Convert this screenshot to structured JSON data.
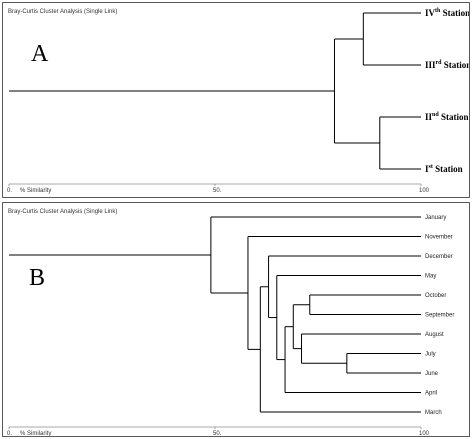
{
  "chart_data": [
    {
      "type": "dendrogram",
      "title": "Bray-Curtis Cluster Analysis (Single Link)",
      "panel_label": "A",
      "xlabel": "% Similarity",
      "xlim": [
        0,
        100
      ],
      "ticks": [
        {
          "value": 0,
          "label": "0."
        },
        {
          "value": 50,
          "label": "50."
        },
        {
          "value": 100,
          "label": "100"
        }
      ],
      "leaves": [
        {
          "id": "s4",
          "name": "IV",
          "suffix": "th",
          "rest": " Station"
        },
        {
          "id": "s3",
          "name": "III",
          "suffix": "rd",
          "rest": " Station"
        },
        {
          "id": "s2",
          "name": "II",
          "suffix": "nd",
          "rest": " Station"
        },
        {
          "id": "s1",
          "name": "I",
          "suffix": "st",
          "rest": " Station"
        }
      ],
      "merges": [
        {
          "id": "m1",
          "children": [
            "s2",
            "s1"
          ],
          "similarity": 90
        },
        {
          "id": "m2",
          "children": [
            "s4",
            "s3"
          ],
          "similarity": 86
        },
        {
          "id": "m3",
          "children": [
            "m2",
            "m1"
          ],
          "similarity": 79
        },
        {
          "id": "root",
          "children": [
            "m3"
          ],
          "similarity": 0
        }
      ]
    },
    {
      "type": "dendrogram",
      "title": "Bray-Curtis Cluster Analysis (Single Link)",
      "panel_label": "B",
      "xlabel": "% Similarity",
      "xlim": [
        0,
        100
      ],
      "ticks": [
        {
          "value": 0,
          "label": "0."
        },
        {
          "value": 50,
          "label": "50."
        },
        {
          "value": 100,
          "label": "100"
        }
      ],
      "leaves": [
        {
          "id": "jan",
          "name": "January"
        },
        {
          "id": "nov",
          "name": "November"
        },
        {
          "id": "dec",
          "name": "December"
        },
        {
          "id": "may",
          "name": "May"
        },
        {
          "id": "oct",
          "name": "October"
        },
        {
          "id": "sep",
          "name": "September"
        },
        {
          "id": "aug",
          "name": "August"
        },
        {
          "id": "jul",
          "name": "July"
        },
        {
          "id": "jun",
          "name": "June"
        },
        {
          "id": "apr",
          "name": "April"
        },
        {
          "id": "mar",
          "name": "March"
        }
      ],
      "merges": [
        {
          "id": "n1",
          "children": [
            "oct",
            "sep"
          ],
          "similarity": 73
        },
        {
          "id": "n2",
          "children": [
            "jul",
            "jun"
          ],
          "similarity": 82
        },
        {
          "id": "n3",
          "children": [
            "aug",
            "n2"
          ],
          "similarity": 71
        },
        {
          "id": "n4",
          "children": [
            "n1",
            "n3"
          ],
          "similarity": 69
        },
        {
          "id": "n5",
          "children": [
            "n4",
            "apr"
          ],
          "similarity": 67
        },
        {
          "id": "n6",
          "children": [
            "may",
            "n5"
          ],
          "similarity": 65
        },
        {
          "id": "n7",
          "children": [
            "dec",
            "n6"
          ],
          "similarity": 63
        },
        {
          "id": "n8",
          "children": [
            "n7",
            "mar"
          ],
          "similarity": 61
        },
        {
          "id": "n9",
          "children": [
            "nov",
            "n8"
          ],
          "similarity": 58
        },
        {
          "id": "n10",
          "children": [
            "jan",
            "n9"
          ],
          "similarity": 49
        },
        {
          "id": "root",
          "children": [
            "n10"
          ],
          "similarity": 0
        }
      ]
    }
  ]
}
